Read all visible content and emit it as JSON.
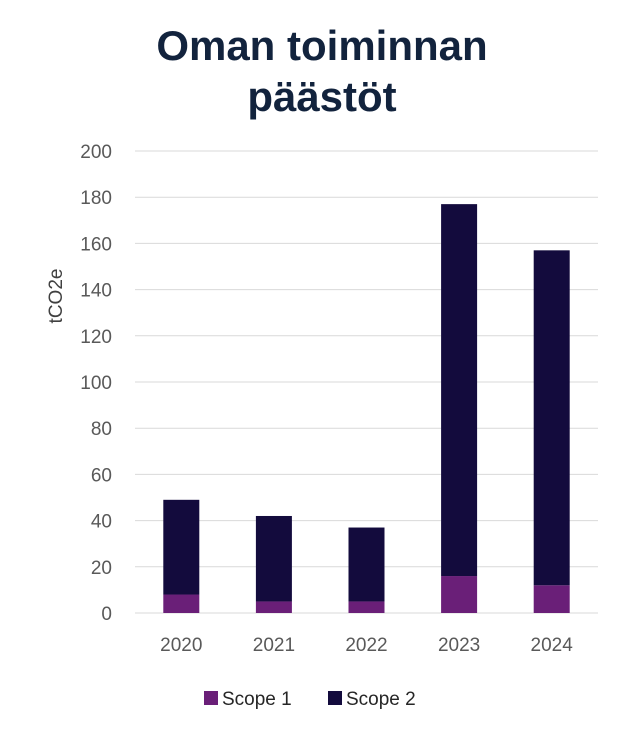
{
  "chart_data": {
    "type": "bar",
    "stacked": true,
    "title_lines": [
      "Oman toiminnan",
      "päästöt"
    ],
    "ylabel": "tCO2e",
    "xlabel": "",
    "categories": [
      "2020",
      "2021",
      "2022",
      "2023",
      "2024"
    ],
    "ylim": [
      0,
      200
    ],
    "yticks": [
      0,
      20,
      40,
      60,
      80,
      100,
      120,
      140,
      160,
      180,
      200
    ],
    "grid": true,
    "legend_position": "bottom",
    "series": [
      {
        "name": "Scope 1",
        "color": "#6a1f78",
        "values": [
          8,
          5,
          5,
          16,
          12
        ]
      },
      {
        "name": "Scope 2",
        "color": "#130b3d",
        "values": [
          41,
          37,
          32,
          161,
          145
        ]
      }
    ]
  }
}
